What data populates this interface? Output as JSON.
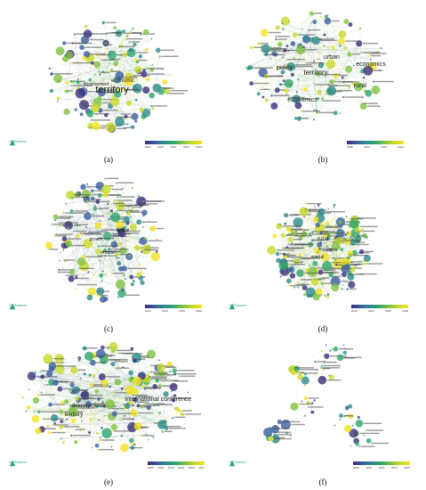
{
  "logo_text": "VOSviewer",
  "colors": [
    "#3b2f7a",
    "#3a5d9b",
    "#2d8a8c",
    "#2fa66b",
    "#7fc241",
    "#c8d92a",
    "#f2e21e"
  ],
  "panels": [
    {
      "id": "a",
      "caption": "(a)",
      "labels": [
        "territory",
        "economic",
        "development"
      ],
      "ticks": [
        "2000",
        "2005",
        "2010",
        "2014",
        "2018"
      ]
    },
    {
      "id": "b",
      "caption": "(b)",
      "labels": [
        "territory",
        "economics",
        "rural",
        "economics",
        "policy",
        "urban"
      ],
      "ticks": [
        "2008",
        "2010",
        "2012",
        "2014"
      ]
    },
    {
      "id": "c",
      "caption": "(c)",
      "labels": [
        "spatial",
        "model",
        "growth"
      ],
      "ticks": [
        "2012",
        "2014",
        "2016",
        "2018"
      ]
    },
    {
      "id": "d",
      "caption": "(d)",
      "labels": [
        "rural",
        "spatial",
        "china"
      ],
      "ticks": [
        "2012",
        "2014",
        "2016",
        "2018"
      ]
    },
    {
      "id": "e",
      "caption": "(e)",
      "labels": [
        "international conference",
        "development",
        "territory"
      ],
      "ticks": [
        "2008",
        "2010",
        "2012",
        "2014",
        "2016",
        "2017"
      ]
    },
    {
      "id": "f",
      "caption": "(f)",
      "labels": [],
      "ticks": [
        "2008",
        "2010",
        "2012",
        "2014",
        "2016"
      ]
    }
  ]
}
